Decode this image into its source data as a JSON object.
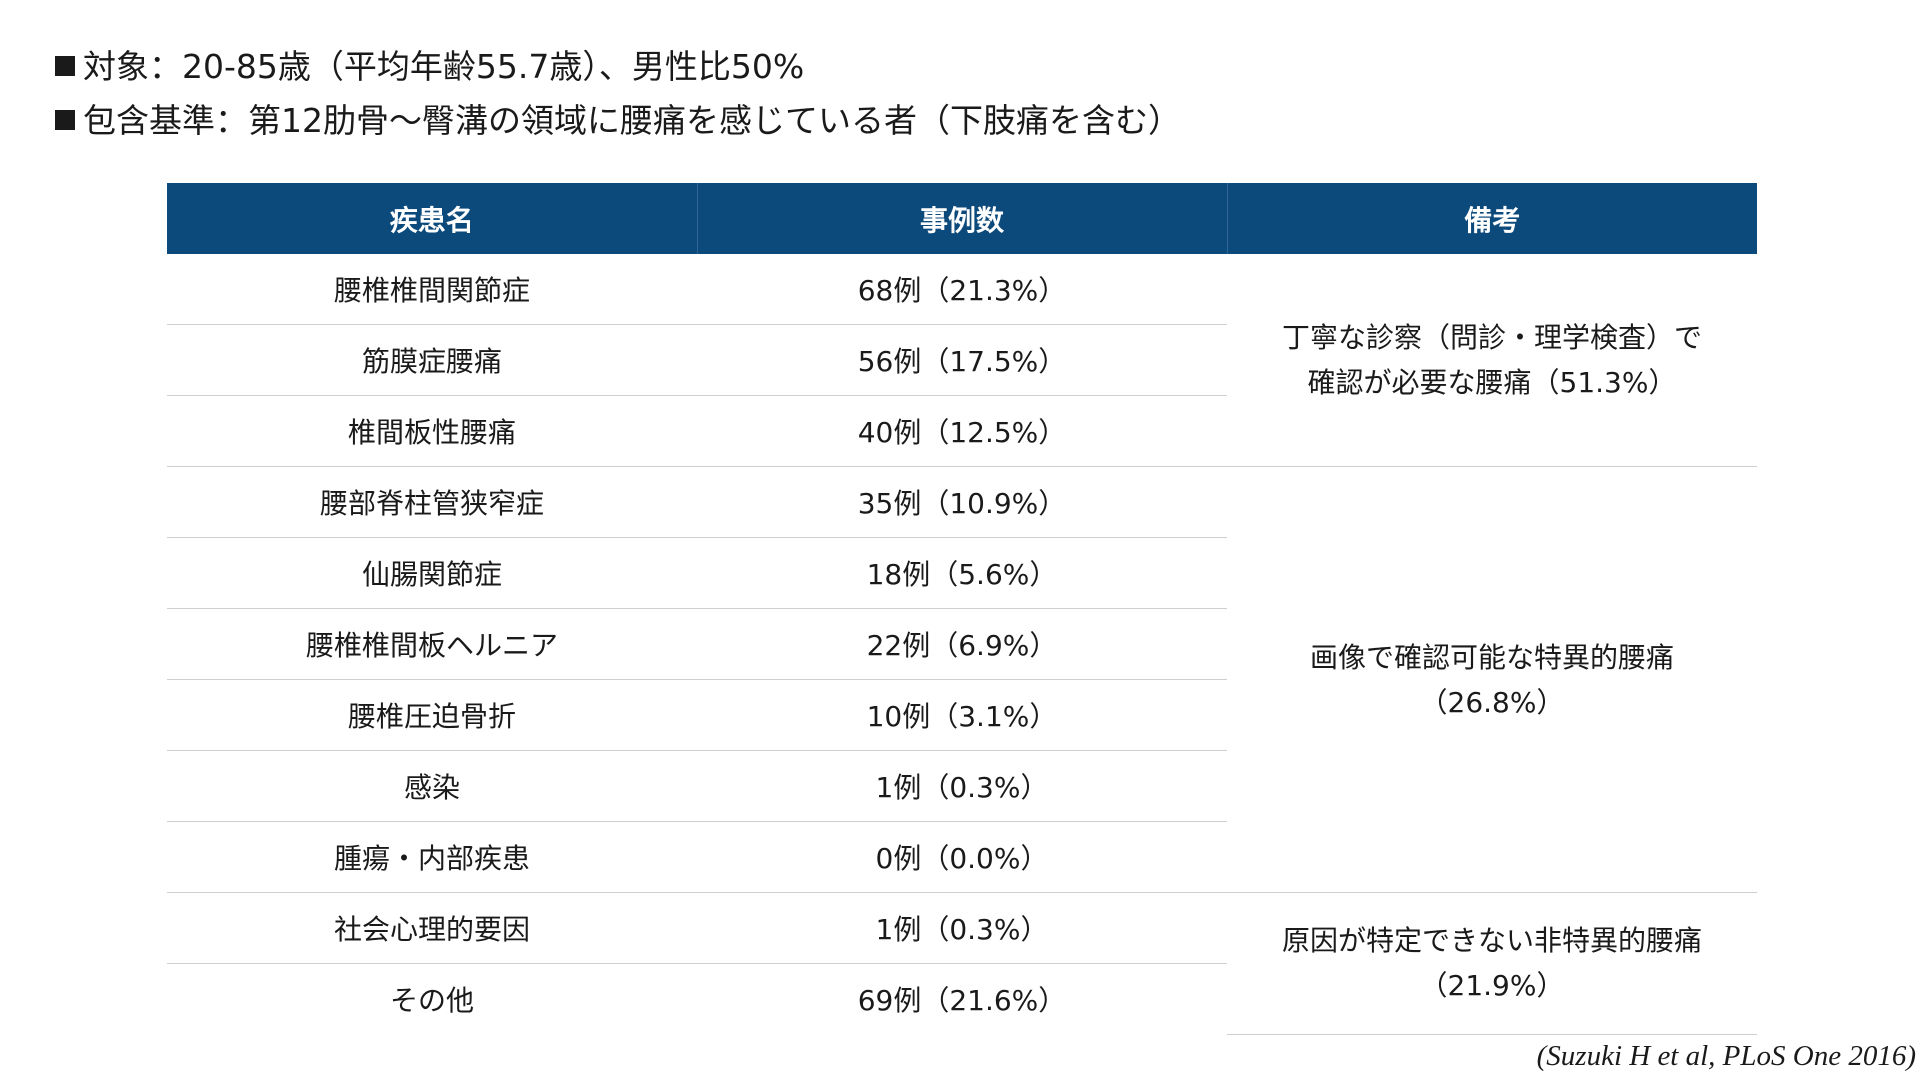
{
  "intro": {
    "line1": "対象：20-85歳（平均年齢55.7歳）、男性比50%",
    "line2": "包含基準：第12肋骨～臀溝の領域に腰痛を感じている者（下肢痛を含む）"
  },
  "table": {
    "headers": [
      "疾患名",
      "事例数",
      "備考"
    ],
    "rows": [
      {
        "disease": "腰椎椎間関節症",
        "cases": "68例（21.3%）"
      },
      {
        "disease": "筋膜症腰痛",
        "cases": "56例（17.5%）"
      },
      {
        "disease": "椎間板性腰痛",
        "cases": "40例（12.5%）"
      },
      {
        "disease": "腰部脊柱管狭窄症",
        "cases": "35例（10.9%）"
      },
      {
        "disease": "仙腸関節症",
        "cases": "18例（5.6%）"
      },
      {
        "disease": "腰椎椎間板ヘルニア",
        "cases": "22例（6.9%）"
      },
      {
        "disease": "腰椎圧迫骨折",
        "cases": "10例（3.1%）"
      },
      {
        "disease": "感染",
        "cases": "1例（0.3%）"
      },
      {
        "disease": "腫瘍・内部疾患",
        "cases": "0例（0.0%）"
      },
      {
        "disease": "社会心理的要因",
        "cases": "1例（0.3%）"
      },
      {
        "disease": "その他",
        "cases": "69例（21.6%）"
      }
    ],
    "remarks": [
      {
        "line1": "丁寧な診察（問診・理学検査）で",
        "line2": "確認が必要な腰痛（51.3%）"
      },
      {
        "line1": "画像で確認可能な特異的腰痛",
        "line2": "（26.8%）"
      },
      {
        "line1": "原因が特定できない非特異的腰痛",
        "line2": "（21.9%）"
      }
    ]
  },
  "citation": "(Suzuki H et al, PLoS One 2016)"
}
